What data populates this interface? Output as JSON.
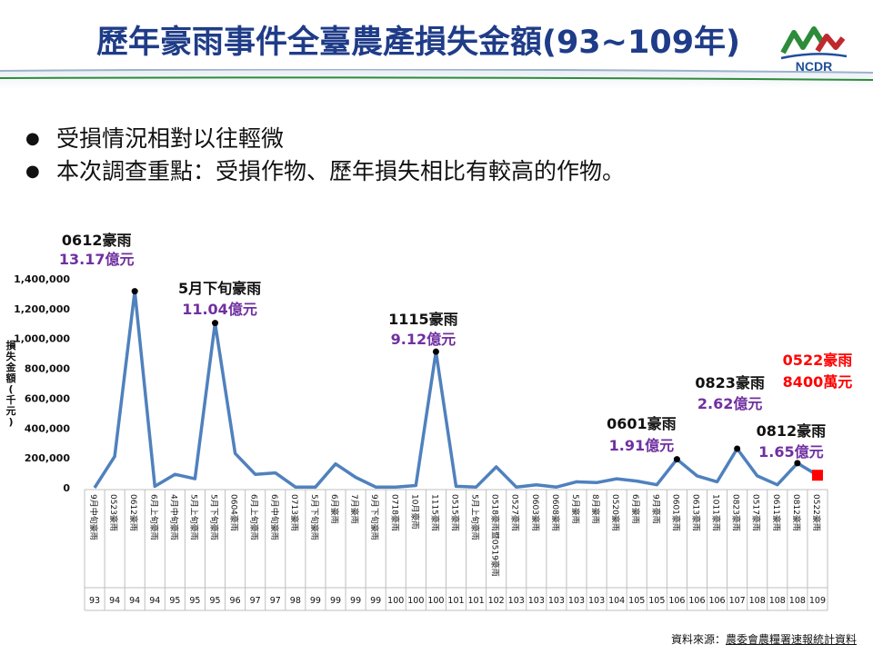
{
  "slide": {
    "title": "歷年豪雨事件全臺農產損失金額(93~109年)",
    "logo_text": "NCDR",
    "bullets": [
      "受損情況相對以往輕微",
      "本次調查重點：受損作物、歷年損失相比有較高的作物。"
    ],
    "footer_label": "資料來源：",
    "footer_source": "農委會農糧署速報統計資料"
  },
  "colors": {
    "title": "#1f3c88",
    "line": "#4f81bd",
    "annotation_name": "#111111",
    "annotation_value": "#7030a0",
    "highlight": "#ff0000",
    "logo_green": "#2e8b3a",
    "logo_red": "#c0282d",
    "logo_blue": "#1f4e9a"
  },
  "chart_data": {
    "type": "line",
    "ylabel": "損失金額(千元)",
    "ylim": [
      0,
      1400000
    ],
    "yticks": [
      "0",
      "200,000",
      "400,000",
      "600,000",
      "800,000",
      "1,000,000",
      "1,200,000",
      "1,400,000"
    ],
    "grid": false,
    "categories": [
      "9月中旬豪雨",
      "0523豪雨",
      "0612豪雨",
      "6月上旬豪雨",
      "4月中旬豪雨",
      "5月上旬豪雨",
      "5月下旬豪雨",
      "0604豪雨",
      "6月上旬豪雨",
      "6月中旬豪雨",
      "0713豪雨",
      "5月下旬豪雨",
      "6月豪雨",
      "7月豪雨",
      "9月下旬豪雨",
      "0718豪雨",
      "10月豪雨",
      "1115豪雨",
      "0515豪雨",
      "5月上旬豪雨",
      "0518豪雨暨0519豪雨",
      "0527豪雨",
      "0603豪雨",
      "0608豪雨",
      "5月豪雨",
      "8月豪雨",
      "0520豪雨",
      "6月豪雨",
      "9月豪雨",
      "0601豪雨",
      "0613豪雨",
      "1011豪雨",
      "0823豪雨",
      "0517豪雨",
      "0611豪雨",
      "0812豪雨",
      "0522豪雨"
    ],
    "years": [
      "93",
      "94",
      "94",
      "94",
      "95",
      "95",
      "95",
      "96",
      "97",
      "97",
      "98",
      "99",
      "99",
      "99",
      "99",
      "100",
      "100",
      "100",
      "101",
      "101",
      "102",
      "103",
      "103",
      "103",
      "103",
      "103",
      "104",
      "105",
      "105",
      "106",
      "106",
      "106",
      "107",
      "108",
      "108",
      "108",
      "109"
    ],
    "series": [
      {
        "values": [
          0,
          210000,
          1317000,
          10000,
          90000,
          60000,
          1104000,
          230000,
          90000,
          100000,
          5000,
          5000,
          160000,
          70000,
          5000,
          5000,
          15000,
          912000,
          10000,
          5000,
          140000,
          5000,
          20000,
          5000,
          40000,
          35000,
          60000,
          45000,
          20000,
          191000,
          80000,
          40000,
          262000,
          80000,
          20000,
          165000,
          84000
        ]
      }
    ],
    "annotations": [
      {
        "index": 2,
        "name": "0612豪雨",
        "value": "13.17億元"
      },
      {
        "index": 6,
        "name": "5月下旬豪雨",
        "value": "11.04億元"
      },
      {
        "index": 17,
        "name": "1115豪雨",
        "value": "9.12億元"
      },
      {
        "index": 29,
        "name": "0601豪雨",
        "value": "1.91億元"
      },
      {
        "index": 32,
        "name": "0823豪雨",
        "value": "2.62億元"
      },
      {
        "index": 35,
        "name": "0812豪雨",
        "value": "1.65億元"
      },
      {
        "index": 36,
        "name": "0522豪雨",
        "value": "8400萬元",
        "highlight": true
      }
    ]
  }
}
